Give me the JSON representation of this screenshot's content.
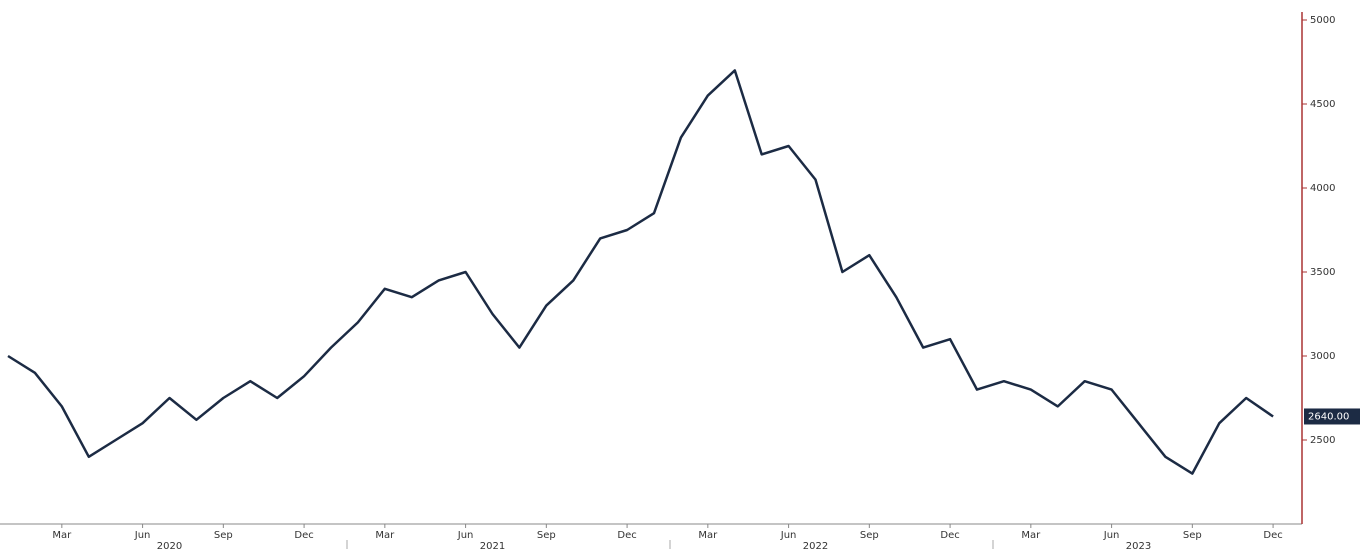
{
  "chart_data": {
    "type": "line",
    "x": [
      "2020-01",
      "2020-02",
      "2020-03",
      "2020-04",
      "2020-05",
      "2020-06",
      "2020-07",
      "2020-08",
      "2020-09",
      "2020-10",
      "2020-11",
      "2020-12",
      "2021-01",
      "2021-02",
      "2021-03",
      "2021-04",
      "2021-05",
      "2021-06",
      "2021-07",
      "2021-08",
      "2021-09",
      "2021-10",
      "2021-11",
      "2021-12",
      "2022-01",
      "2022-02",
      "2022-03",
      "2022-04",
      "2022-05",
      "2022-06",
      "2022-07",
      "2022-08",
      "2022-09",
      "2022-10",
      "2022-11",
      "2022-12",
      "2023-01",
      "2023-02",
      "2023-03",
      "2023-04",
      "2023-05",
      "2023-06",
      "2023-07",
      "2023-08",
      "2023-09",
      "2023-10",
      "2023-11",
      "2023-12"
    ],
    "series": [
      {
        "color": "#1c2b44",
        "values": [
          3000,
          2900,
          2700,
          2400,
          2500,
          2600,
          2750,
          2620,
          2750,
          2850,
          2750,
          2880,
          3050,
          3200,
          3400,
          3350,
          3450,
          3500,
          3250,
          3050,
          3300,
          3450,
          3700,
          3750,
          3850,
          4300,
          4550,
          4700,
          4200,
          4250,
          4050,
          3500,
          3600,
          3350,
          3050,
          3100,
          2800,
          2850,
          2800,
          2700,
          2850,
          2800,
          2600,
          2400,
          2300,
          2600,
          2750,
          2640
        ],
        "value_labels": [
          null,
          null,
          null,
          null,
          null,
          null,
          null,
          null,
          null,
          null,
          null,
          null,
          null,
          null,
          null,
          null,
          null,
          null,
          null,
          null,
          null,
          null,
          null,
          null,
          null,
          null,
          null,
          null,
          null,
          null,
          null,
          null,
          null,
          null,
          null,
          null,
          null,
          null,
          null,
          null,
          null,
          null,
          null,
          null,
          null,
          null,
          null,
          "2640.00"
        ]
      }
    ],
    "xlim": [
      "2020-01",
      "2024-01"
    ],
    "xticks": [
      {
        "value": "2020-03",
        "label": "Mar"
      },
      {
        "value": "2020-06",
        "label": "Jun"
      },
      {
        "value": "2020-09",
        "label": "Sep"
      },
      {
        "value": "2020-12",
        "label": "Dec"
      },
      {
        "value": "2021-03",
        "label": "Mar"
      },
      {
        "value": "2021-06",
        "label": "Jun"
      },
      {
        "value": "2021-09",
        "label": "Sep"
      },
      {
        "value": "2021-12",
        "label": "Dec"
      },
      {
        "value": "2022-03",
        "label": "Mar"
      },
      {
        "value": "2022-06",
        "label": "Jun"
      },
      {
        "value": "2022-09",
        "label": "Sep"
      },
      {
        "value": "2022-12",
        "label": "Dec"
      },
      {
        "value": "2023-03",
        "label": "Mar"
      },
      {
        "value": "2023-06",
        "label": "Jun"
      },
      {
        "value": "2023-09",
        "label": "Sep"
      },
      {
        "value": "2023-12",
        "label": "Dec"
      }
    ],
    "years": [
      "2020",
      "2021",
      "2022",
      "2023"
    ],
    "ylim": [
      2000,
      5000
    ],
    "yticks": [
      2500,
      3000,
      3500,
      4000,
      4500,
      5000
    ],
    "y_axis_side": "right",
    "grid": false
  }
}
